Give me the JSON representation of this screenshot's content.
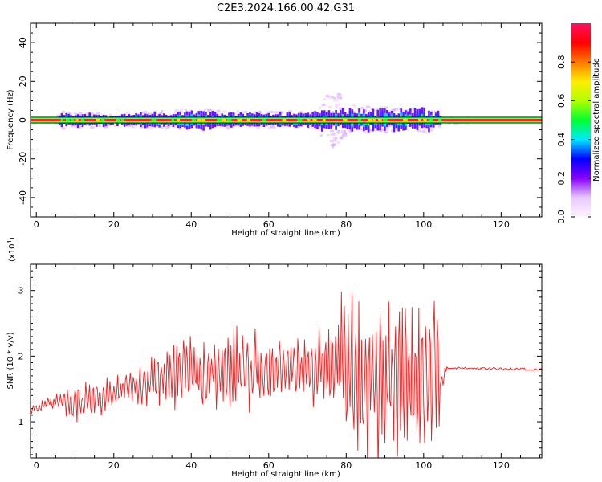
{
  "title": "C2E3.2024.166.00.42.G31",
  "colors": {
    "snr_line": "#ee2222",
    "frame": "#000000",
    "colorbar_stops": [
      "#fff2ff",
      "#e8c8ff",
      "#8800ff",
      "#0000ff",
      "#00e8ff",
      "#00ff30",
      "#b0ff00",
      "#ffee00",
      "#ff7700",
      "#ff0000",
      "#ff1060"
    ]
  },
  "chart_data": [
    {
      "type": "heatmap",
      "xlabel": "Height of straight line (km)",
      "ylabel": "Frequency (Hz)",
      "xlim": [
        -1.5,
        130.5
      ],
      "ylim": [
        -50,
        50
      ],
      "x_ticks": [
        0,
        20,
        40,
        60,
        80,
        100,
        120
      ],
      "x_tick_labels": [
        "0",
        "20",
        "40",
        "60",
        "80",
        "100",
        "120"
      ],
      "y_ticks": [
        -40,
        -20,
        0,
        20,
        40
      ],
      "y_tick_labels": [
        "-40",
        "-20",
        "0",
        "20",
        "40"
      ],
      "grid": false,
      "colorbar": {
        "label": "Normalized spectral amplitude",
        "range": [
          0,
          1
        ],
        "ticks": [
          0.0,
          0.2,
          0.4,
          0.6,
          0.8
        ],
        "tick_labels": [
          "0.0",
          "0.2",
          "0.4",
          "0.6",
          "0.8"
        ]
      },
      "ridge": {
        "freq": 0.0,
        "x_start": -1.5,
        "x_end": 130.5
      },
      "spread": {
        "x": [
          -1,
          5,
          6,
          20,
          30,
          40,
          55,
          65,
          70,
          72,
          74,
          76,
          78,
          80,
          84,
          88,
          92,
          96,
          100,
          102,
          103,
          104,
          105,
          130
        ],
        "halfwidth_hz": [
          2,
          2,
          4,
          3,
          4,
          5,
          4,
          4,
          4,
          5,
          9,
          10,
          10,
          6,
          7,
          6,
          6,
          5,
          6,
          5,
          4,
          3,
          2,
          1
        ]
      }
    },
    {
      "type": "line",
      "xlabel": "Height of straight line (km)",
      "ylabel": "SNR (10 * v/v)",
      "y_multiplier_label": "(x10",
      "y_multiplier_exp": "4",
      "y_multiplier_close": ")",
      "xlim": [
        -1.5,
        130.5
      ],
      "ylim": [
        0.45,
        3.4
      ],
      "x_ticks": [
        0,
        20,
        40,
        60,
        80,
        100,
        120
      ],
      "x_tick_labels": [
        "0",
        "20",
        "40",
        "60",
        "80",
        "100",
        "120"
      ],
      "y_ticks": [
        1,
        2,
        3
      ],
      "y_tick_labels": [
        "1",
        "2",
        "3"
      ],
      "grid": false,
      "series": [
        {
          "x_step": 0.25,
          "envelope_x": [
            -1.5,
            5,
            10,
            15,
            20,
            25,
            30,
            35,
            40,
            45,
            50,
            55,
            60,
            65,
            70,
            75,
            78,
            80,
            85,
            90,
            95,
            100,
            103,
            104.5,
            106,
            130.5
          ],
          "envelope_mean": [
            1.18,
            1.32,
            1.28,
            1.36,
            1.44,
            1.52,
            1.62,
            1.7,
            1.75,
            1.75,
            1.78,
            1.8,
            1.8,
            1.82,
            1.78,
            1.9,
            1.95,
            1.8,
            1.7,
            1.65,
            1.7,
            1.65,
            1.6,
            1.55,
            1.82,
            1.8
          ],
          "envelope_amp": [
            0.07,
            0.12,
            0.35,
            0.3,
            0.32,
            0.28,
            0.45,
            0.55,
            0.65,
            0.62,
            0.7,
            0.7,
            0.55,
            0.45,
            0.55,
            0.75,
            1.1,
            1.4,
            1.6,
            1.55,
            1.45,
            1.55,
            1.45,
            1.2,
            0.02,
            0.02
          ]
        }
      ]
    }
  ]
}
